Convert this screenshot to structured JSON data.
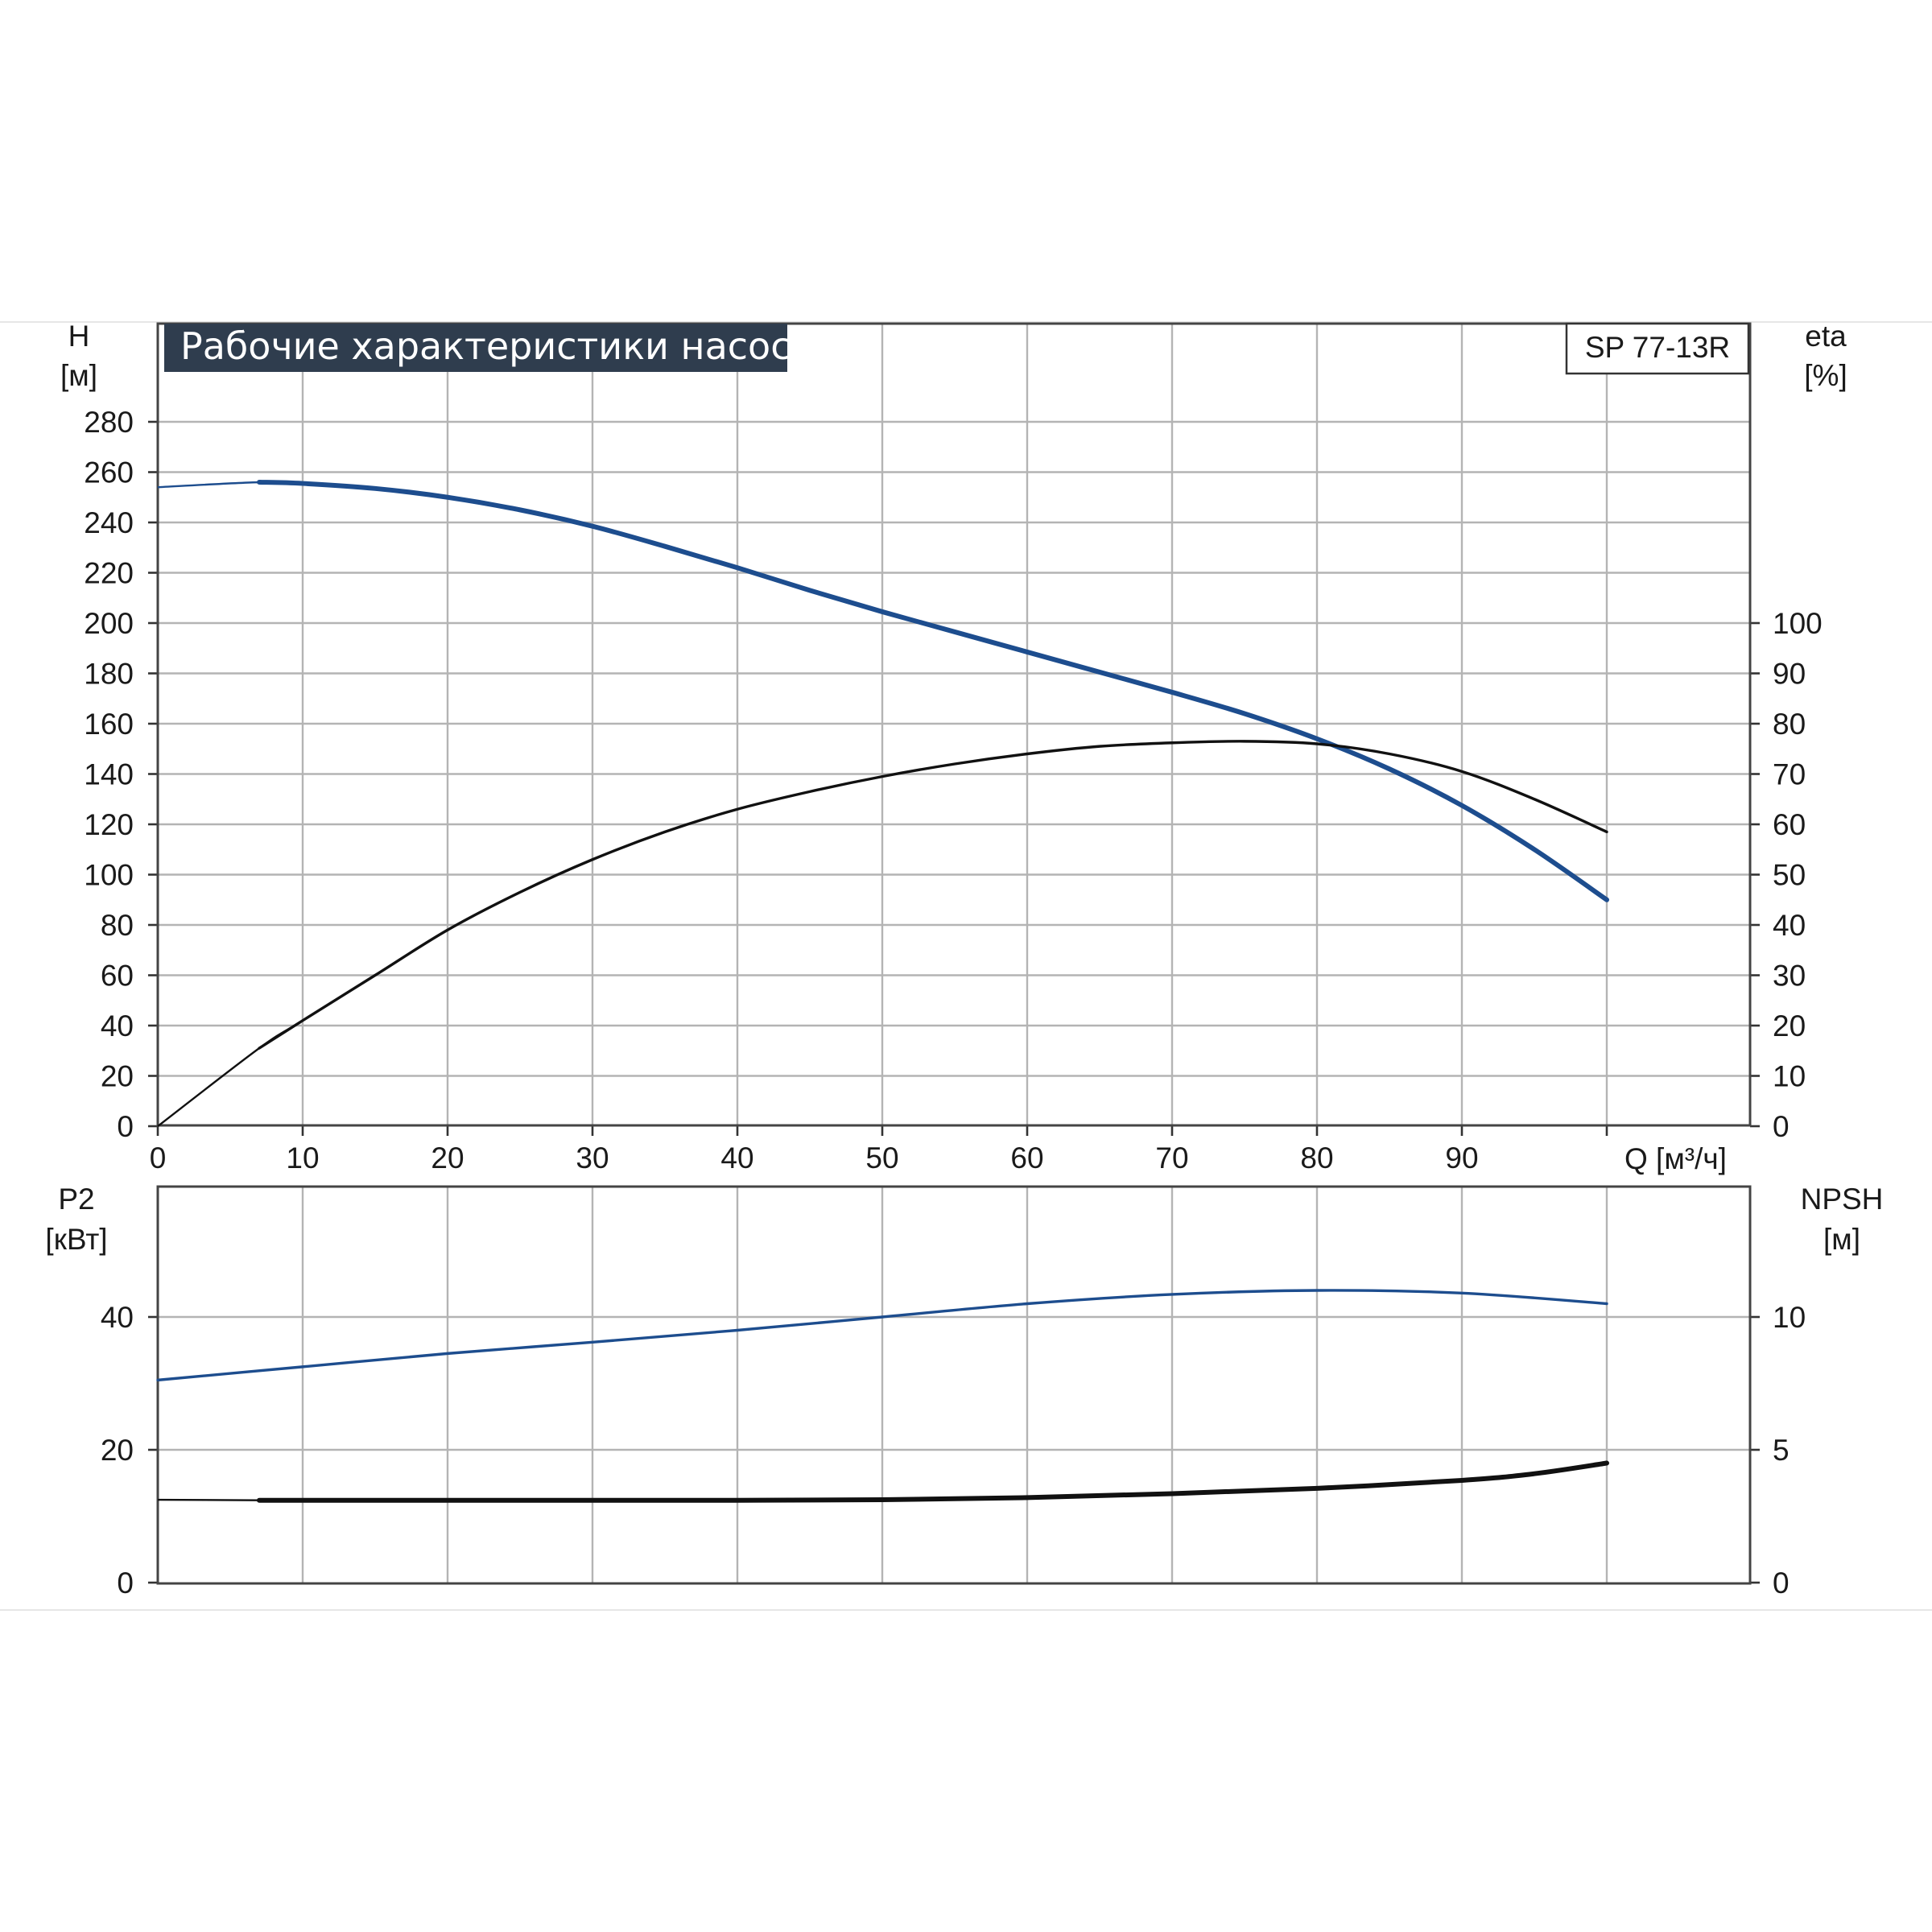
{
  "chart_data": [
    {
      "type": "line",
      "title": "Рабочие характеристики насоса",
      "model": "SP 77-13R",
      "xlabel": "Q [м³/ч]",
      "xlim": [
        0,
        110
      ],
      "xticks": [
        0,
        10,
        20,
        30,
        40,
        50,
        60,
        70,
        80,
        90
      ],
      "ylabel_left": [
        "H",
        "[м]"
      ],
      "ylim_left": [
        0,
        290
      ],
      "yticks_left": [
        0,
        20,
        40,
        60,
        80,
        100,
        120,
        140,
        160,
        180,
        200,
        220,
        240,
        260,
        280
      ],
      "ylabel_right": [
        "eta",
        "[%]"
      ],
      "ylim_right": [
        0,
        145
      ],
      "yticks_right": [
        0,
        10,
        20,
        30,
        40,
        50,
        60,
        70,
        80,
        90,
        100
      ],
      "grid": true,
      "series": [
        {
          "axis": "left",
          "color": "#1d4d8e",
          "x": [
            0,
            7,
            10,
            15,
            20,
            25,
            30,
            35,
            40,
            45,
            50,
            55,
            60,
            65,
            70,
            75,
            80,
            85,
            90,
            95,
            100
          ],
          "y": [
            254,
            256,
            255.5,
            253.5,
            250,
            245,
            238.5,
            230.5,
            222,
            213,
            204.5,
            196.5,
            188.5,
            180.5,
            172.5,
            164,
            154,
            142,
            127.5,
            110,
            90
          ]
        },
        {
          "axis": "right",
          "color": "#111111",
          "x": [
            0,
            7,
            10,
            15,
            20,
            25,
            30,
            35,
            40,
            45,
            50,
            55,
            60,
            65,
            70,
            75,
            80,
            85,
            90,
            95,
            100
          ],
          "y": [
            0,
            15.5,
            21,
            30,
            39,
            46.5,
            53,
            58.5,
            63,
            66.5,
            69.5,
            72,
            74,
            75.5,
            76.2,
            76.5,
            76,
            74,
            70.5,
            65,
            58.5
          ]
        }
      ]
    },
    {
      "type": "line",
      "xlim": [
        0,
        110
      ],
      "ylabel_left": [
        "P2",
        "[кВт]"
      ],
      "ylim_left": [
        0,
        60
      ],
      "yticks_left": [
        0,
        20,
        40
      ],
      "ylabel_right": [
        "NPSH",
        "[м]"
      ],
      "ylim_right": [
        0,
        15
      ],
      "yticks_right": [
        0,
        5,
        10
      ],
      "grid": true,
      "series": [
        {
          "axis": "left",
          "color": "#1d4d8e",
          "x": [
            0,
            10,
            20,
            30,
            40,
            50,
            60,
            70,
            80,
            90,
            100
          ],
          "y": [
            30.5,
            32.5,
            34.5,
            36.2,
            38,
            40,
            42,
            43.4,
            44,
            43.6,
            42
          ]
        },
        {
          "axis": "right",
          "color": "#111111",
          "x": [
            0,
            7,
            20,
            30,
            40,
            50,
            60,
            70,
            80,
            90,
            95,
            100
          ],
          "y": [
            3.12,
            3.1,
            3.1,
            3.1,
            3.1,
            3.12,
            3.2,
            3.35,
            3.55,
            3.85,
            4.1,
            4.5
          ]
        }
      ]
    }
  ]
}
